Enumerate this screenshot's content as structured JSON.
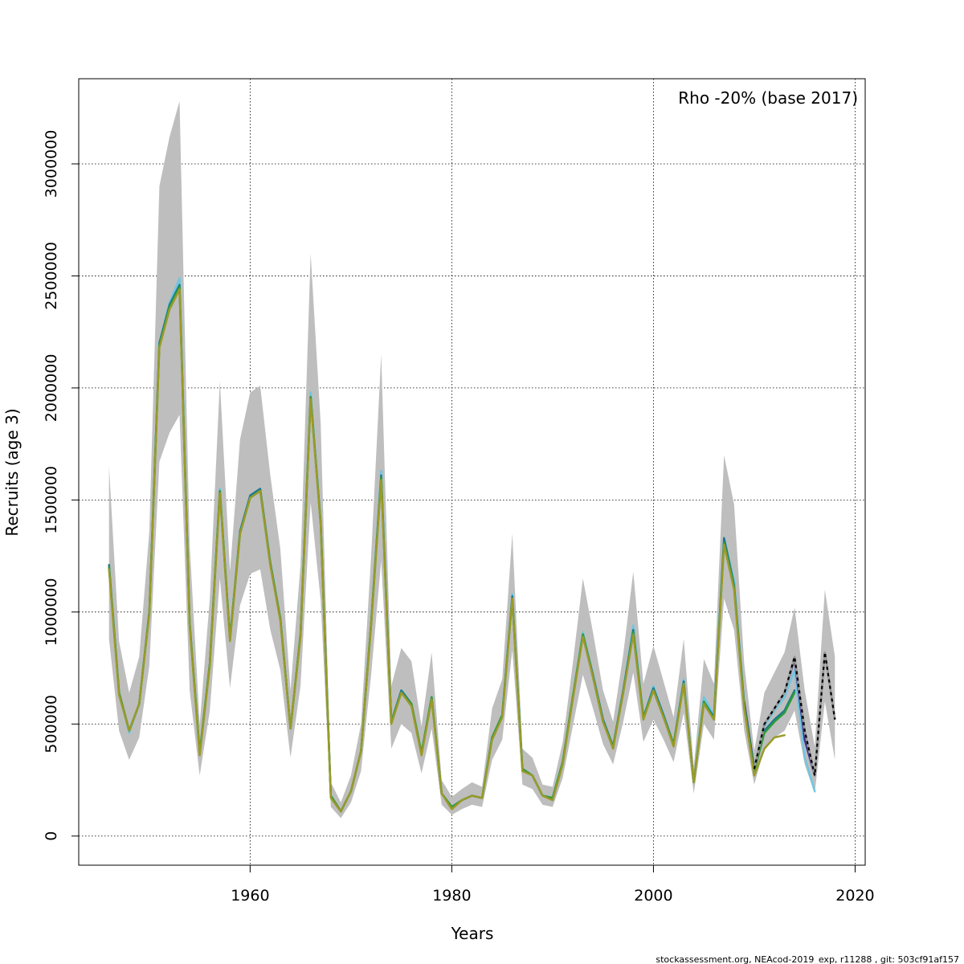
{
  "chart_data": {
    "type": "line",
    "annotation": "Rho -20% (base 2017)",
    "xlabel": "Years",
    "ylabel": "Recruits (age 3)",
    "footer": "stockassessment.org, NEAcod-2019_exp, r11288 , git: 503cf91af157",
    "xlim": [
      1943,
      2021
    ],
    "ylim": [
      -130000,
      3380000
    ],
    "x_ticks": [
      1960,
      1980,
      2000,
      2020
    ],
    "y_ticks": [
      0,
      500000,
      1000000,
      1500000,
      2000000,
      2500000,
      3000000
    ],
    "grid": true,
    "band_color": "#bebebe",
    "base": {
      "years": [
        1946,
        1947,
        1948,
        1949,
        1950,
        1951,
        1952,
        1953,
        1954,
        1955,
        1956,
        1957,
        1958,
        1959,
        1960,
        1961,
        1962,
        1963,
        1964,
        1965,
        1966,
        1967,
        1968,
        1969,
        1970,
        1971,
        1972,
        1973,
        1974,
        1975,
        1976,
        1977,
        1978,
        1979,
        1980,
        1981,
        1982,
        1983,
        1984,
        1985,
        1986,
        1987,
        1988,
        1989,
        1990,
        1991,
        1992,
        1993,
        1994,
        1995,
        1996,
        1997,
        1998,
        1999,
        2000,
        2001,
        2002,
        2003,
        2004,
        2005,
        2006,
        2007,
        2008,
        2009,
        2010,
        2011,
        2012,
        2013,
        2014,
        2015,
        2016,
        2017,
        2018
      ],
      "values": [
        1210000,
        640000,
        470000,
        590000,
        1000000,
        2200000,
        2370000,
        2470000,
        950000,
        370000,
        770000,
        1550000,
        880000,
        1360000,
        1520000,
        1550000,
        1220000,
        970000,
        480000,
        900000,
        1970000,
        1400000,
        180000,
        110000,
        200000,
        380000,
        950000,
        1620000,
        510000,
        650000,
        590000,
        370000,
        620000,
        190000,
        130000,
        160000,
        180000,
        170000,
        440000,
        540000,
        1080000,
        300000,
        270000,
        180000,
        170000,
        330000,
        620000,
        910000,
        720000,
        520000,
        400000,
        650000,
        930000,
        530000,
        660000,
        540000,
        410000,
        700000,
        240000,
        630000,
        550000,
        1350000,
        1150000,
        600000,
        300000,
        500000,
        570000,
        640000,
        800000,
        470000,
        270000,
        820000,
        520000
      ],
      "lower": [
        880000,
        470000,
        340000,
        440000,
        760000,
        1670000,
        1800000,
        1880000,
        650000,
        270000,
        560000,
        1150000,
        660000,
        1030000,
        1170000,
        1190000,
        920000,
        740000,
        350000,
        670000,
        1490000,
        1050000,
        130000,
        80000,
        150000,
        290000,
        720000,
        1230000,
        390000,
        500000,
        460000,
        280000,
        480000,
        140000,
        95000,
        120000,
        140000,
        130000,
        340000,
        430000,
        830000,
        230000,
        210000,
        140000,
        130000,
        260000,
        490000,
        720000,
        570000,
        410000,
        320000,
        510000,
        730000,
        420000,
        520000,
        430000,
        330000,
        550000,
        190000,
        500000,
        430000,
        1060000,
        920000,
        470000,
        230000,
        390000,
        440000,
        470000,
        560000,
        320000,
        190000,
        600000,
        340000
      ],
      "upper": [
        1650000,
        870000,
        640000,
        800000,
        1360000,
        2900000,
        3120000,
        3280000,
        1300000,
        500000,
        1060000,
        2030000,
        1180000,
        1770000,
        1980000,
        2010000,
        1610000,
        1280000,
        650000,
        1210000,
        2600000,
        1840000,
        240000,
        150000,
        270000,
        500000,
        1250000,
        2150000,
        670000,
        840000,
        780000,
        490000,
        820000,
        250000,
        175000,
        210000,
        240000,
        220000,
        570000,
        700000,
        1350000,
        390000,
        350000,
        230000,
        220000,
        420000,
        770000,
        1150000,
        910000,
        650000,
        510000,
        810000,
        1180000,
        680000,
        850000,
        690000,
        530000,
        880000,
        310000,
        790000,
        680000,
        1700000,
        1480000,
        770000,
        380000,
        640000,
        730000,
        820000,
        1020000,
        650000,
        400000,
        1100000,
        800000
      ]
    },
    "series": [
      {
        "color": "#6fc6e0",
        "width": 2.5,
        "years": [
          1946,
          1947,
          1948,
          1949,
          1950,
          1951,
          1952,
          1953,
          1954,
          1955,
          1956,
          1957,
          1958,
          1959,
          1960,
          1961,
          1962,
          1963,
          1964,
          1965,
          1966,
          1967,
          1968,
          1969,
          1970,
          1971,
          1972,
          1973,
          1974,
          1975,
          1976,
          1977,
          1978,
          1979,
          1980,
          1981,
          1982,
          1983,
          1984,
          1985,
          1986,
          1987,
          1988,
          1989,
          1990,
          1991,
          1992,
          1993,
          1994,
          1995,
          1996,
          1997,
          1998,
          1999,
          2000,
          2001,
          2002,
          2003,
          2004,
          2005,
          2006,
          2007,
          2008,
          2009,
          2010,
          2011,
          2012,
          2013,
          2014,
          2015,
          2016
        ],
        "values": [
          1200000,
          640000,
          460000,
          590000,
          1000000,
          2200000,
          2380000,
          2490000,
          950000,
          360000,
          770000,
          1550000,
          880000,
          1360000,
          1520000,
          1550000,
          1220000,
          970000,
          480000,
          900000,
          1980000,
          1400000,
          180000,
          110000,
          200000,
          380000,
          950000,
          1630000,
          510000,
          650000,
          590000,
          370000,
          620000,
          190000,
          130000,
          160000,
          180000,
          170000,
          440000,
          540000,
          1080000,
          300000,
          270000,
          180000,
          170000,
          330000,
          620000,
          910000,
          720000,
          520000,
          400000,
          650000,
          940000,
          530000,
          670000,
          540000,
          410000,
          700000,
          240000,
          620000,
          540000,
          1330000,
          1140000,
          590000,
          300000,
          490000,
          560000,
          620000,
          740000,
          350000,
          200000
        ]
      },
      {
        "color": "#3b2a8c",
        "width": 2.5,
        "years": [
          2009,
          2010,
          2011,
          2012,
          2013,
          2014,
          2015,
          2016
        ],
        "values": [
          600000,
          300000,
          500000,
          570000,
          640000,
          790000,
          430000,
          270000
        ]
      },
      {
        "color": "#1b7a8c",
        "width": 2.5,
        "years": [
          1946,
          1947,
          1948,
          1949,
          1950,
          1951,
          1952,
          1953,
          1954,
          1955,
          1956,
          1957,
          1958,
          1959,
          1960,
          1961,
          1962,
          1963,
          1964,
          1965,
          1966,
          1967,
          1968,
          1969,
          1970,
          1971,
          1972,
          1973,
          1974,
          1975,
          1976,
          1977,
          1978,
          1979,
          1980,
          1981,
          1982,
          1983,
          1984,
          1985,
          1986,
          1987,
          1988,
          1989,
          1990,
          1991,
          1992,
          1993,
          1994,
          1995,
          1996,
          1997,
          1998,
          1999,
          2000,
          2001,
          2002,
          2003,
          2004,
          2005,
          2006,
          2007,
          2008,
          2009,
          2010,
          2011,
          2012,
          2013,
          2014
        ],
        "values": [
          1210000,
          640000,
          470000,
          590000,
          1000000,
          2200000,
          2370000,
          2460000,
          950000,
          370000,
          770000,
          1540000,
          880000,
          1360000,
          1520000,
          1550000,
          1220000,
          970000,
          480000,
          900000,
          1960000,
          1400000,
          180000,
          110000,
          200000,
          380000,
          950000,
          1610000,
          510000,
          650000,
          590000,
          370000,
          620000,
          190000,
          130000,
          160000,
          180000,
          170000,
          440000,
          540000,
          1070000,
          300000,
          270000,
          180000,
          170000,
          330000,
          620000,
          900000,
          720000,
          520000,
          400000,
          650000,
          920000,
          530000,
          660000,
          540000,
          410000,
          690000,
          240000,
          600000,
          530000,
          1330000,
          1120000,
          590000,
          290000,
          470000,
          520000,
          560000,
          650000
        ]
      },
      {
        "color": "#2f9a3a",
        "width": 2.5,
        "years": [
          1946,
          1947,
          1948,
          1949,
          1950,
          1951,
          1952,
          1953,
          1954,
          1955,
          1956,
          1957,
          1958,
          1959,
          1960,
          1961,
          1962,
          1963,
          1964,
          1965,
          1966,
          1967,
          1968,
          1969,
          1970,
          1971,
          1972,
          1973,
          1974,
          1975,
          1976,
          1977,
          1978,
          1979,
          1980,
          1981,
          1982,
          1983,
          1984,
          1985,
          1986,
          1987,
          1988,
          1989,
          1990,
          1991,
          1992,
          1993,
          1994,
          1995,
          1996,
          1997,
          1998,
          1999,
          2000,
          2001,
          2002,
          2003,
          2004,
          2005,
          2006,
          2007,
          2008,
          2009,
          2010,
          2011,
          2012,
          2013,
          2014
        ],
        "values": [
          1200000,
          640000,
          470000,
          590000,
          1000000,
          2190000,
          2360000,
          2450000,
          950000,
          370000,
          770000,
          1540000,
          880000,
          1350000,
          1510000,
          1540000,
          1210000,
          970000,
          480000,
          900000,
          1960000,
          1390000,
          180000,
          110000,
          200000,
          380000,
          950000,
          1600000,
          510000,
          640000,
          590000,
          370000,
          620000,
          190000,
          130000,
          160000,
          180000,
          170000,
          440000,
          540000,
          1060000,
          300000,
          270000,
          180000,
          170000,
          330000,
          620000,
          900000,
          710000,
          510000,
          400000,
          640000,
          910000,
          530000,
          650000,
          530000,
          410000,
          680000,
          240000,
          600000,
          520000,
          1310000,
          1110000,
          580000,
          290000,
          460000,
          510000,
          550000,
          640000
        ]
      },
      {
        "color": "#9a9a28",
        "width": 2.5,
        "years": [
          1946,
          1947,
          1948,
          1949,
          1950,
          1951,
          1952,
          1953,
          1954,
          1955,
          1956,
          1957,
          1958,
          1959,
          1960,
          1961,
          1962,
          1963,
          1964,
          1965,
          1966,
          1967,
          1968,
          1969,
          1970,
          1971,
          1972,
          1973,
          1974,
          1975,
          1976,
          1977,
          1978,
          1979,
          1980,
          1981,
          1982,
          1983,
          1984,
          1985,
          1986,
          1987,
          1988,
          1989,
          1990,
          1991,
          1992,
          1993,
          1994,
          1995,
          1996,
          1997,
          1998,
          1999,
          2000,
          2001,
          2002,
          2003,
          2004,
          2005,
          2006,
          2007,
          2008,
          2009,
          2010,
          2011,
          2012,
          2013
        ],
        "values": [
          1190000,
          630000,
          470000,
          590000,
          990000,
          2180000,
          2350000,
          2440000,
          940000,
          360000,
          760000,
          1530000,
          870000,
          1350000,
          1510000,
          1540000,
          1210000,
          960000,
          480000,
          890000,
          1950000,
          1390000,
          170000,
          110000,
          200000,
          380000,
          940000,
          1590000,
          500000,
          640000,
          580000,
          360000,
          610000,
          190000,
          120000,
          160000,
          180000,
          170000,
          430000,
          530000,
          1060000,
          290000,
          270000,
          180000,
          160000,
          320000,
          610000,
          890000,
          710000,
          510000,
          390000,
          640000,
          900000,
          520000,
          650000,
          530000,
          400000,
          680000,
          240000,
          590000,
          520000,
          1300000,
          1100000,
          570000,
          270000,
          390000,
          440000,
          450000
        ]
      },
      {
        "color": "#000000",
        "width": 2.2,
        "dashed": true,
        "years": [
          2010,
          2011,
          2012,
          2013,
          2014,
          2015,
          2016,
          2017,
          2018
        ],
        "values": [
          300000,
          500000,
          570000,
          640000,
          800000,
          470000,
          270000,
          820000,
          520000
        ]
      }
    ]
  }
}
